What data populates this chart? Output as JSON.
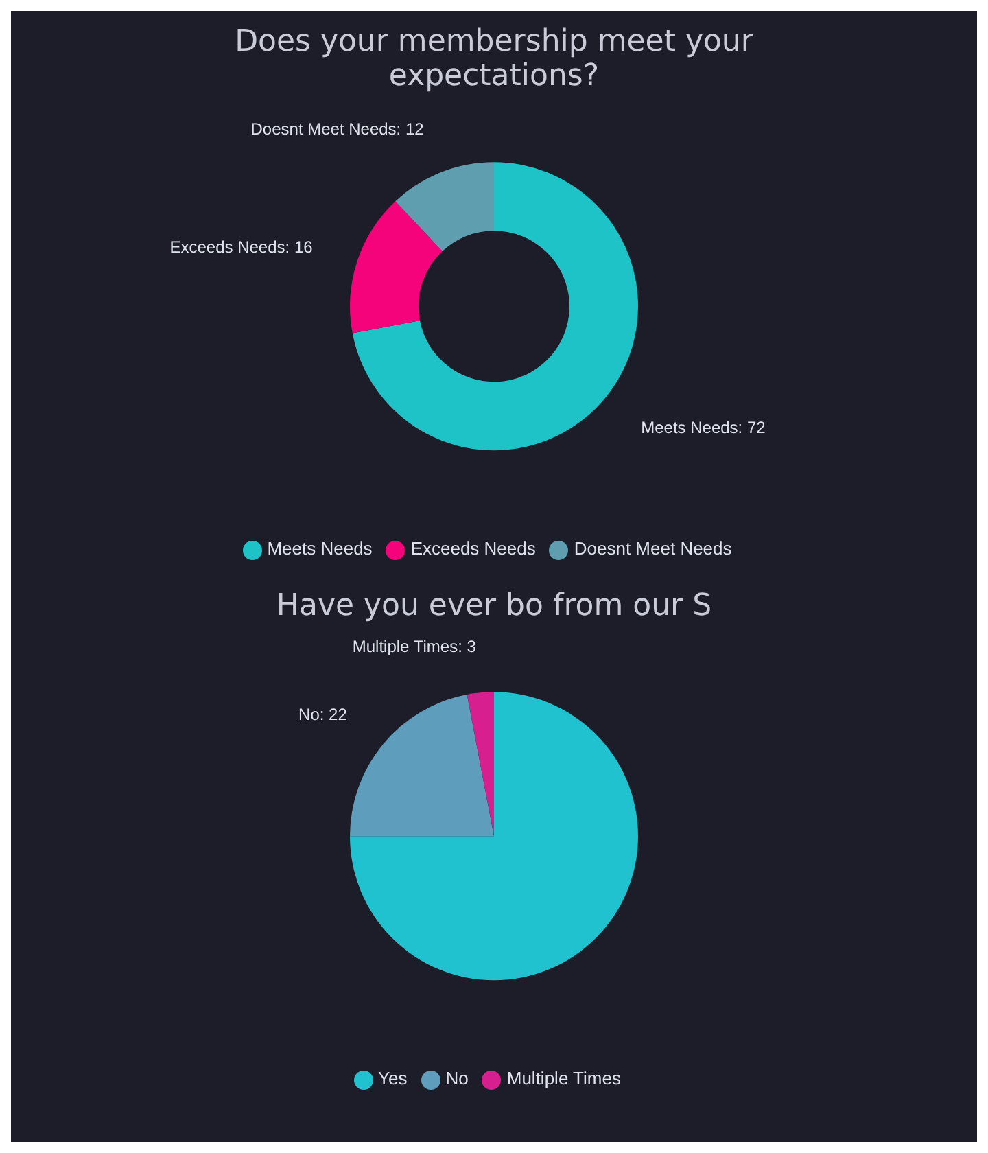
{
  "chart_data": [
    {
      "type": "donut",
      "title": "Does your membership meet your expectations?",
      "categories": [
        "Meets Needs",
        "Exceeds Needs",
        "Doesnt Meet Needs"
      ],
      "values": [
        72,
        16,
        12
      ],
      "colors": [
        "#1ec3c8",
        "#f5037a",
        "#5f9eaf"
      ],
      "value_labels": [
        "Meets Needs: 72",
        "Exceeds Needs: 16",
        "Doesnt Meet Needs: 12"
      ],
      "legend": "bottom"
    },
    {
      "type": "pie",
      "title": "Have you ever bo from our S",
      "categories": [
        "Yes",
        "No",
        "Multiple Times"
      ],
      "values": [
        75,
        22,
        3
      ],
      "colors": [
        "#21c2cf",
        "#5e9dbb",
        "#d81f8f"
      ],
      "value_labels": [
        null,
        "No: 22",
        "Multiple Times: 3"
      ],
      "legend": "bottom"
    }
  ]
}
